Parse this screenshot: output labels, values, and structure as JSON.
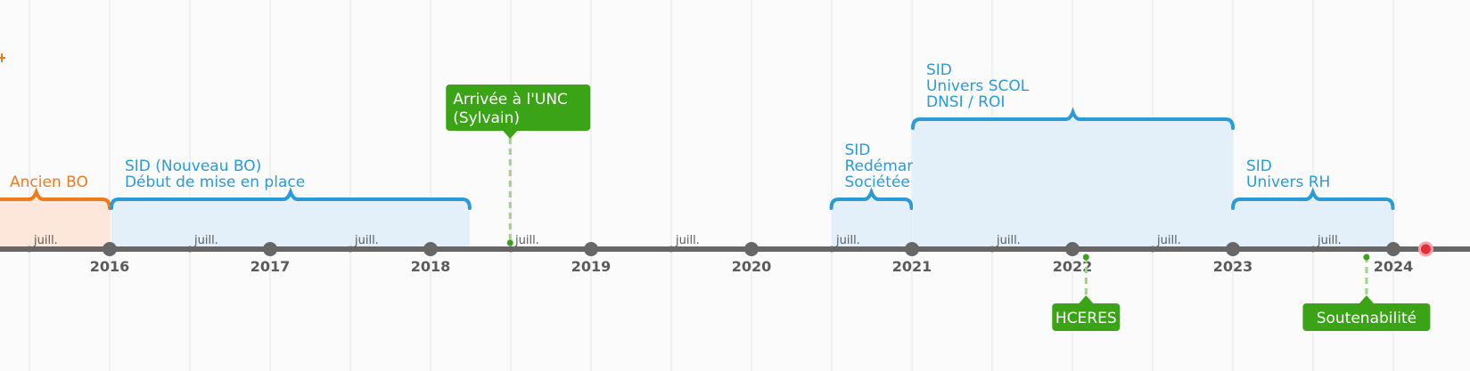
{
  "colors": {
    "blue": "#2a9ad8",
    "blue_fill": "#e3f0fa",
    "orange": "#ef7a1a",
    "orange_fill": "#fce7da",
    "green": "#3aa316",
    "axis": "#676767",
    "grid": "#e2e6e8",
    "tick_text": "#5a5a5a",
    "today": "#e0303a"
  },
  "timeline": {
    "years": [
      "2016",
      "2017",
      "2018",
      "2019",
      "2020",
      "2021",
      "2022",
      "2023",
      "2024"
    ],
    "mid_label": "juill."
  },
  "periods": [
    {
      "id": "ancien-bo",
      "color": "orange",
      "start": "2015-02-01",
      "end": "2016-01-01",
      "lines": [
        "Ancien BO"
      ]
    },
    {
      "id": "sid-nouveau-bo",
      "color": "blue",
      "start": "2016-01-05",
      "end": "2018-03-31",
      "lines": [
        "SID (Nouveau BO)",
        "Début de mise en place"
      ]
    },
    {
      "id": "sid-redemarrage",
      "color": "blue",
      "start": "2020-07-01",
      "end": "2020-12-31",
      "lines": [
        "SID",
        "Redémarrage du projet",
        "Sociétée KPI / DNSI"
      ]
    },
    {
      "id": "sid-univers-scol",
      "color": "blue",
      "start": "2021-01-03",
      "end": "2023-01-01",
      "lines": [
        "SID",
        "Univers SCOL",
        "DNSI / ROI"
      ]
    },
    {
      "id": "sid-univers-rh",
      "color": "blue",
      "start": "2023-01-01",
      "end": "2023-12-31",
      "lines": [
        "SID",
        "Univers RH"
      ]
    }
  ],
  "events": [
    {
      "id": "arrivee-unc",
      "date": "2018-07-01",
      "position": "above",
      "lines": [
        "Arrivée à l'UNC",
        "(Sylvain)"
      ]
    },
    {
      "id": "hceres",
      "date": "2022-02-01",
      "position": "below",
      "lines": [
        "HCERES"
      ]
    },
    {
      "id": "soutenabilite",
      "date": "2023-11-01",
      "position": "below",
      "lines": [
        "Soutenabilité"
      ]
    }
  ],
  "today": "2024-03-15"
}
